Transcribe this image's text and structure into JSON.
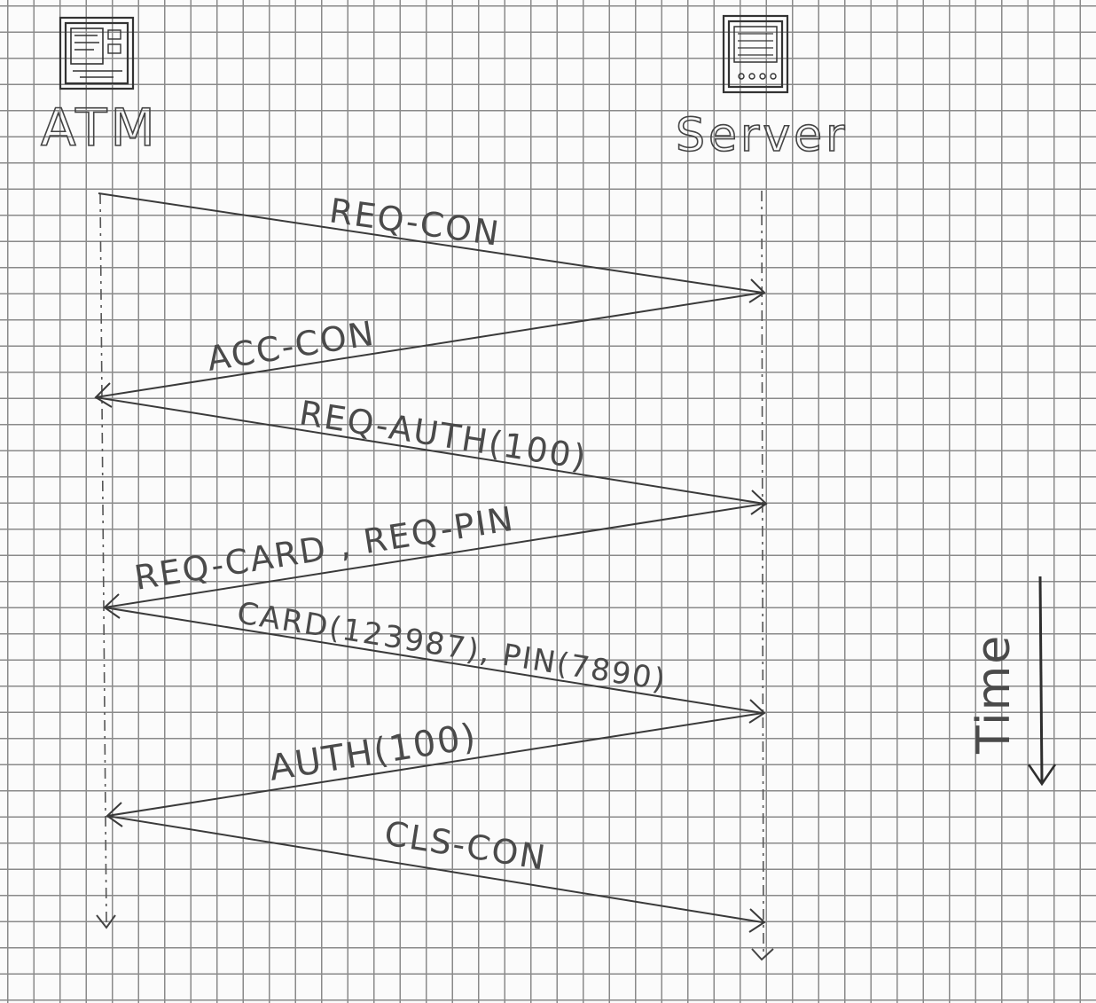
{
  "diagram": {
    "type": "sequence",
    "participants": [
      {
        "id": "atm",
        "label": "ATM",
        "icon": "atm-machine-icon"
      },
      {
        "id": "server",
        "label": "Server",
        "icon": "server-icon"
      }
    ],
    "messages": [
      {
        "from": "atm",
        "to": "server",
        "label": "REQ-CON"
      },
      {
        "from": "server",
        "to": "atm",
        "label": "ACC-CON"
      },
      {
        "from": "atm",
        "to": "server",
        "label": "REQ-AUTH(100)"
      },
      {
        "from": "server",
        "to": "atm",
        "label": "REQ-CARD , REQ-PIN"
      },
      {
        "from": "atm",
        "to": "server",
        "label": "CARD(123987), PIN(7890)"
      },
      {
        "from": "server",
        "to": "atm",
        "label": "AUTH(100)"
      },
      {
        "from": "atm",
        "to": "server",
        "label": "CLS-CON"
      }
    ],
    "time_axis": {
      "label": "Time",
      "direction": "down"
    }
  },
  "colors": {
    "ink": "#3a3a3a",
    "grid": "#8a8a8a",
    "paper": "#fbfbfb"
  }
}
